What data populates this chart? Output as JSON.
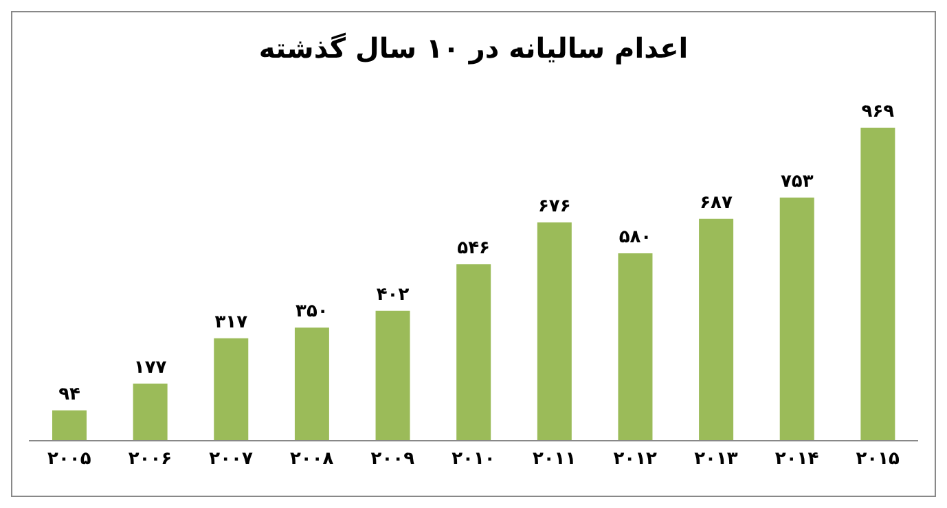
{
  "chart_data": {
    "type": "bar",
    "title": "اعدام سالیانه در ۱۰ سال گذشته",
    "categories": [
      "۲۰۰۵",
      "۲۰۰۶",
      "۲۰۰۷",
      "۲۰۰۸",
      "۲۰۰۹",
      "۲۰۱۰",
      "۲۰۱۱",
      "۲۰۱۲",
      "۲۰۱۳",
      "۲۰۱۴",
      "۲۰۱۵"
    ],
    "values": [
      94,
      177,
      317,
      350,
      402,
      546,
      676,
      580,
      687,
      753,
      969
    ],
    "value_labels": [
      "۹۴",
      "۱۷۷",
      "۳۱۷",
      "۳۵۰",
      "۴۰۲",
      "۵۴۶",
      "۶۷۶",
      "۵۸۰",
      "۶۸۷",
      "۷۵۳",
      "۹۶۹"
    ],
    "color": "#9bbb59",
    "grid": false,
    "legend": false
  }
}
